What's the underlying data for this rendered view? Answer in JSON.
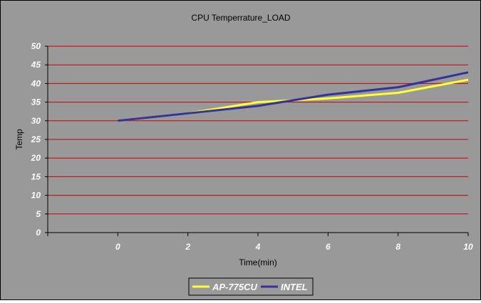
{
  "chart_data": {
    "type": "line",
    "title": "CPU Temperrature_LOAD",
    "xlabel": "Time(min)",
    "ylabel": "Temp",
    "x": [
      0,
      2,
      4,
      6,
      8,
      10
    ],
    "xlim": [
      -2,
      10
    ],
    "ylim": [
      0,
      50
    ],
    "ytick_step": 5,
    "series": [
      {
        "name": "AP-775CU",
        "values": [
          30,
          32,
          35,
          36,
          37.5,
          41
        ],
        "color": "#ffff33"
      },
      {
        "name": "INTEL",
        "values": [
          30,
          32,
          34,
          37,
          39,
          43
        ],
        "color": "#333399"
      }
    ],
    "grid": true,
    "grid_color": "#cc0000",
    "plot_background": "#999999",
    "legend_placement": "bottom"
  }
}
